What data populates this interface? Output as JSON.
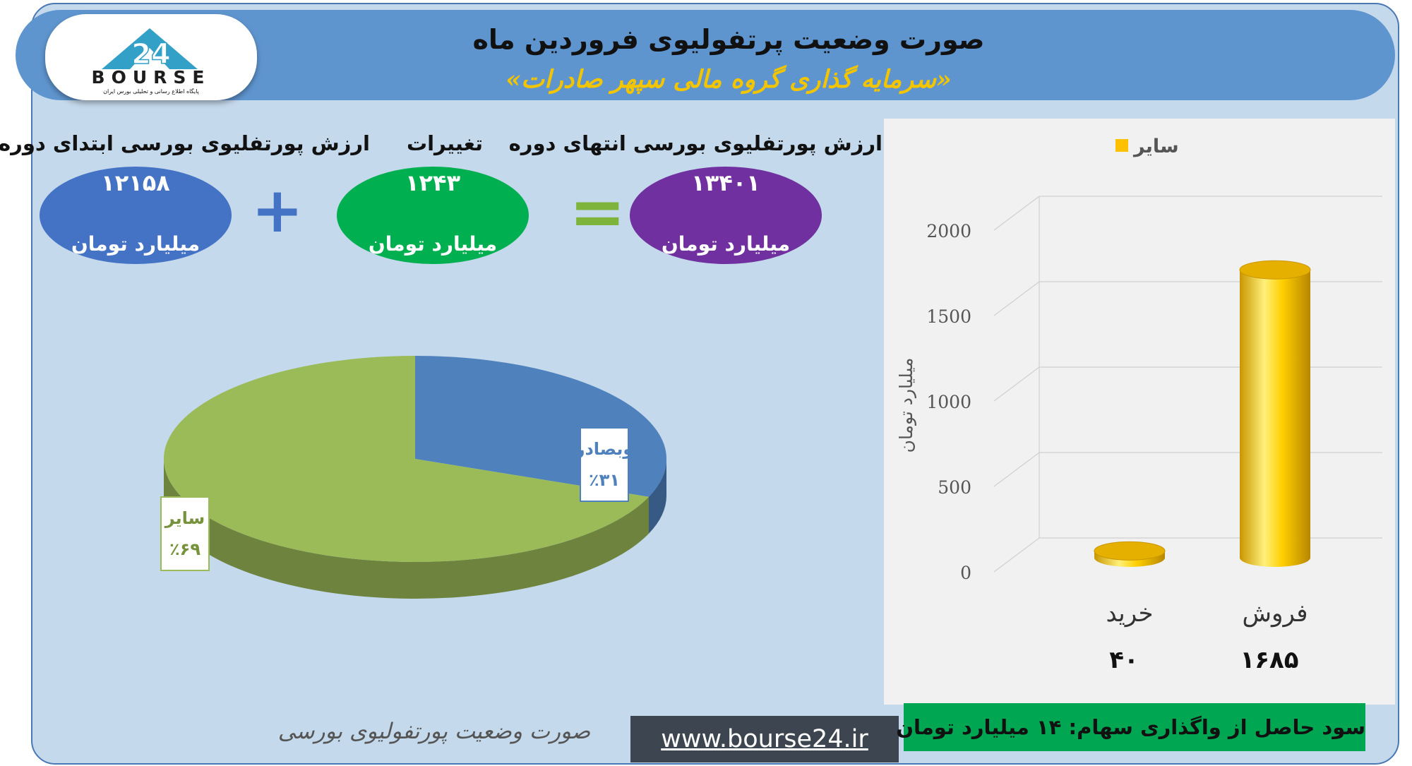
{
  "header": {
    "title": "صورت وضعیت پرتفولیوی فروردین ماه",
    "subtitle": "«سرمایه گذاری گروه مالی سپهر صادرات»"
  },
  "logo": {
    "name": "BOURSE",
    "tagline": "پایگاه اطلاع رسانی و تحلیلی بورس ایران",
    "number": "24"
  },
  "summary": {
    "start": {
      "label": "ارزش پورتفلیوی بورسی ابتدای دوره",
      "value": "۱۲۱۵۸",
      "unit": "میلیارد تومان",
      "color": "#4472c4"
    },
    "change": {
      "label": "تغییرات",
      "value": "۱۲۴۳",
      "unit": "میلیارد تومان",
      "color": "#00b050"
    },
    "end": {
      "label": "ارزش پورتفلیوی بورسی انتهای دوره",
      "value": "۱۳۴۰۱",
      "unit": "میلیارد تومان",
      "color": "#7030a0"
    },
    "plus_symbol": "+",
    "equals_symbol": "="
  },
  "chart_data": [
    {
      "type": "pie",
      "title": "",
      "slices": [
        {
          "name": "وبصادر",
          "value": 31,
          "label": "٪۳۱",
          "color": "#4f81bd"
        },
        {
          "name": "سایر",
          "value": 69,
          "label": "٪۶۹",
          "color": "#9bbb59"
        }
      ]
    },
    {
      "type": "bar",
      "title": "",
      "categories": [
        "خرید",
        "فروش"
      ],
      "series": [
        {
          "name": "سایر",
          "values": [
            40,
            1685
          ],
          "color": "#ffc000"
        }
      ],
      "value_labels": [
        "۴۰",
        "۱۶۸۵"
      ],
      "ylabel": "میلیارد تومان",
      "ylim": [
        0,
        2000
      ],
      "yticks": [
        0,
        500,
        1000,
        1500,
        2000
      ],
      "grid": true,
      "legend": "top"
    }
  ],
  "footer": {
    "pie_caption": "صورت وضعیت پورتفولیوی بورسی",
    "website": "www.bourse24.ir",
    "profit_note": "سود حاصل از واگذاری سهام: ۱۴ میلیارد تومان"
  }
}
